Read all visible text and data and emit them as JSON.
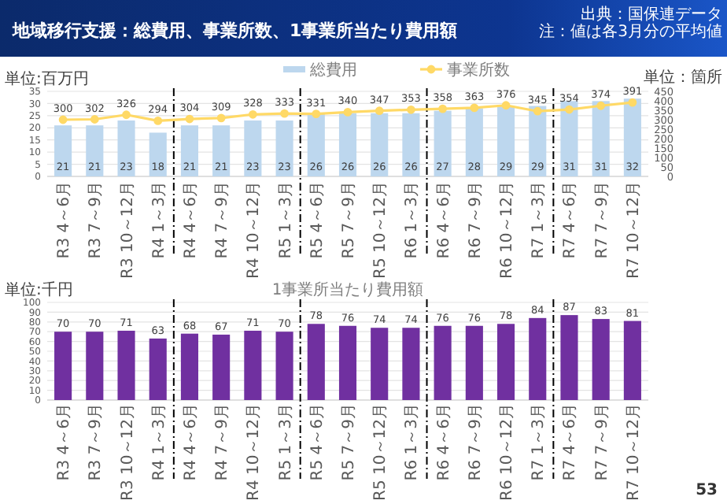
{
  "chart_data": [
    {
      "type": "bar",
      "title": "地域移行支援：総費用、事業所数、1事業所当たり費用額",
      "ylabel": "単位:百万円",
      "y2label": "単位：箇所",
      "categories": [
        "R3 4～6月",
        "R3 7～9月",
        "R3 10～12月",
        "R4 1～3月",
        "R4 4～6月",
        "R4 7～9月",
        "R4 10～12月",
        "R5 1～3月",
        "R5 4～6月",
        "R5 7～9月",
        "R5 10～12月",
        "R6 1～3月",
        "R6 4～6月",
        "R6 7～9月",
        "R6 10～12月",
        "R7 1～3月",
        "R7 4～6月",
        "R7 7～9月",
        "R7 10～12月"
      ],
      "series": [
        {
          "name": "総費用",
          "type": "bar",
          "color": "#bdd7ee",
          "values": [
            21,
            21,
            23,
            18,
            21,
            21,
            23,
            23,
            26,
            26,
            26,
            26,
            27,
            28,
            29,
            29,
            31,
            31,
            32
          ]
        },
        {
          "name": "事業所数",
          "type": "line",
          "axis": "y2",
          "color": "#ffd966",
          "values": [
            300,
            302,
            326,
            294,
            304,
            309,
            328,
            333,
            331,
            340,
            347,
            353,
            358,
            363,
            376,
            345,
            354,
            374,
            391
          ]
        }
      ],
      "ylim": [
        0,
        35
      ],
      "yticks": [
        0,
        5,
        10,
        15,
        20,
        25,
        30,
        35
      ],
      "y2lim": [
        0,
        450
      ],
      "y2ticks": [
        0,
        50,
        100,
        150,
        200,
        250,
        300,
        350,
        400,
        450
      ],
      "grid": "y",
      "legend": "top",
      "marker": "circle",
      "data_labels": true,
      "annotations": [
        "出典：国保連データ",
        "注：値は各3月分の平均値"
      ]
    },
    {
      "type": "bar",
      "title": "1事業所当たり費用額",
      "ylabel": "単位:千円",
      "categories": [
        "R3 4～6月",
        "R3 7～9月",
        "R3 10～12月",
        "R4 1～3月",
        "R4 4～6月",
        "R4 7～9月",
        "R4 10～12月",
        "R5 1～3月",
        "R5 4～6月",
        "R5 7～9月",
        "R5 10～12月",
        "R6 1～3月",
        "R6 4～6月",
        "R6 7～9月",
        "R6 10～12月",
        "R7 1～3月",
        "R7 4～6月",
        "R7 7～9月",
        "R7 10～12月"
      ],
      "series": [
        {
          "color": "#7030a0",
          "values": [
            70,
            70,
            71,
            63,
            68,
            67,
            71,
            70,
            78,
            76,
            74,
            74,
            76,
            76,
            78,
            84,
            87,
            83,
            81
          ]
        }
      ],
      "ylim": [
        0,
        100
      ],
      "yticks": [
        0,
        10,
        20,
        30,
        40,
        50,
        60,
        70,
        80,
        90,
        100
      ],
      "grid": "y",
      "data_labels": true,
      "annotations": [
        "53"
      ]
    }
  ]
}
